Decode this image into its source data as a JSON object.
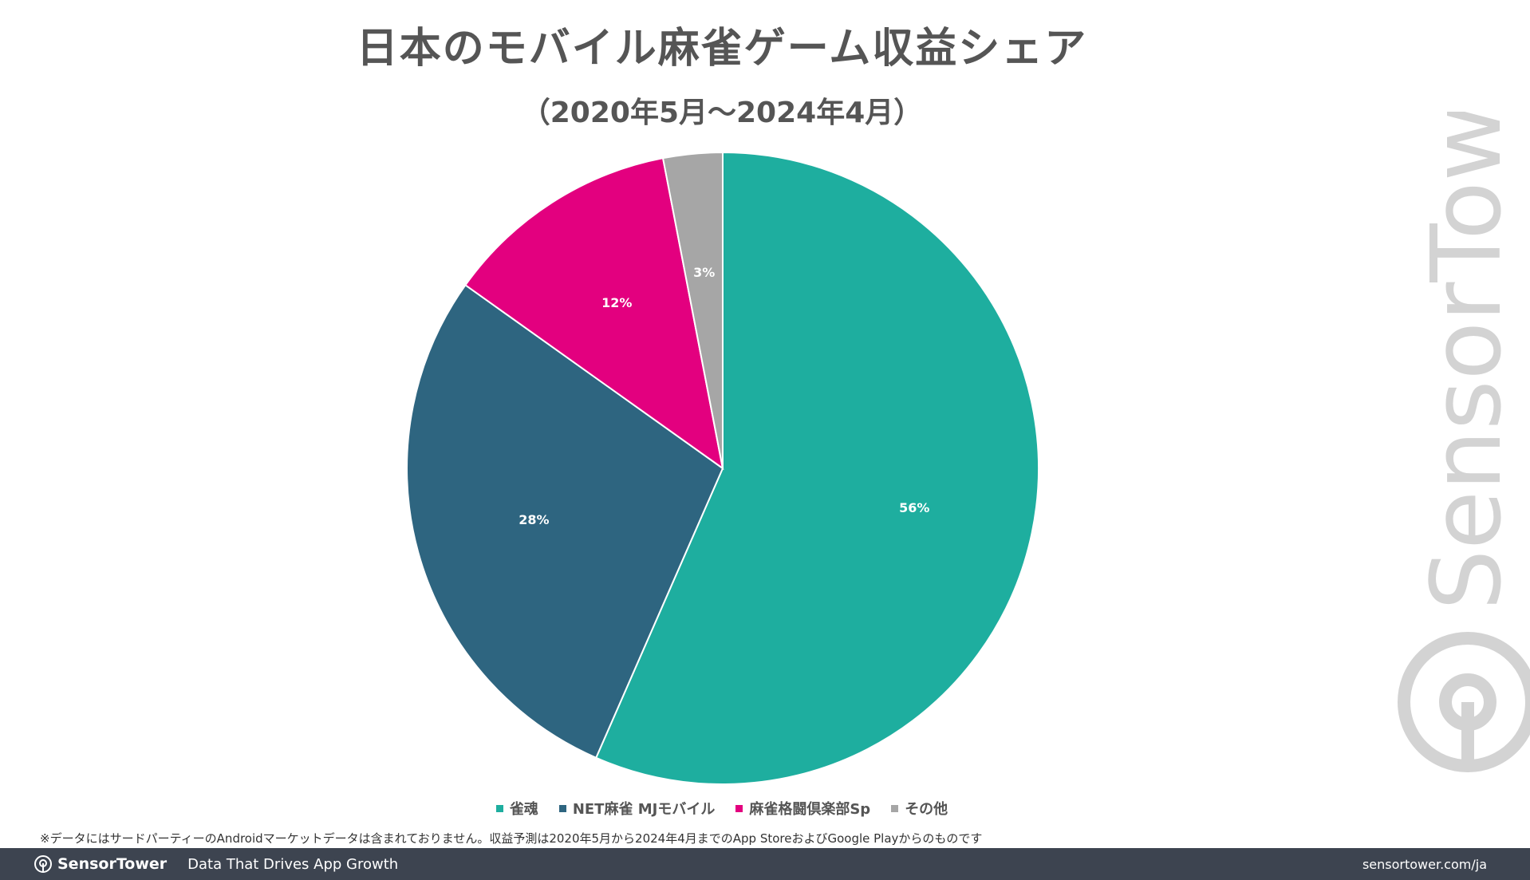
{
  "chart_data": {
    "type": "pie",
    "title": "日本のモバイル麻雀ゲーム収益シェア",
    "subtitle": "（2020年5月〜2024年4月）",
    "slices": [
      {
        "name": "雀魂",
        "value": 56,
        "label": "56%",
        "color": "#1eae9f"
      },
      {
        "name": "NET麻雀 MJモバイル",
        "value": 28,
        "label": "28%",
        "color": "#2e6580"
      },
      {
        "name": "麻雀格闘倶楽部Sp",
        "value": 12,
        "label": "12%",
        "color": "#e3007f"
      },
      {
        "name": "その他",
        "value": 3,
        "label": "3%",
        "color": "#a6a6a6"
      }
    ],
    "start_angle": "12 o'clock",
    "direction": "clockwise",
    "legend_position": "bottom"
  },
  "footnote": "※データにはサードパーティーのAndroidマーケットデータは含まれておりません。収益予測は2020年5月から2024年4月までのApp StoreおよびGoogle Playからのものです",
  "footer": {
    "brand": "SensorTower",
    "tagline": "Data That Drives App Growth",
    "url": "sensortower.com/ja"
  },
  "watermark": {
    "text": "SensorTower"
  }
}
